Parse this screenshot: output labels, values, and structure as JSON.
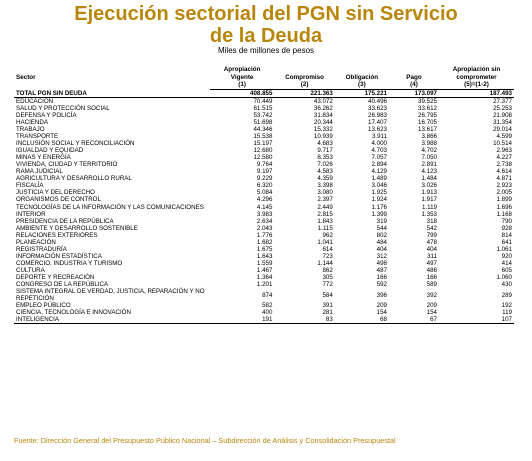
{
  "title_line1": "Ejecución sectorial del PGN sin Servicio",
  "title_line2": "de la Deuda",
  "subtitle": "Miles de millones de pesos",
  "headers": {
    "sector": "Sector",
    "apropiacion": "Apropiación Vigente",
    "compromiso": "Compromiso",
    "obligacion": "Obligación",
    "pago": "Pago",
    "sin_comprometer": "Apropiación sin comprometer",
    "n1": "(1)",
    "n2": "(2)",
    "n3": "(3)",
    "n4": "(4)",
    "n5": "(5)=(1-2)"
  },
  "total": {
    "sector": "TOTAL PGN SIN DEUDA",
    "a": "408.855",
    "c": "221.363",
    "o": "175.221",
    "p": "173.097",
    "s": "187.493"
  },
  "rows": [
    {
      "sector": "EDUCACIÓN",
      "a": "70.449",
      "c": "43.072",
      "o": "40.496",
      "p": "39.525",
      "s": "27.377"
    },
    {
      "sector": "SALUD Y PROTECCIÓN SOCIAL",
      "a": "61.515",
      "c": "36.262",
      "o": "33.623",
      "p": "33.612",
      "s": "25.253"
    },
    {
      "sector": "DEFENSA Y POLICÍA",
      "a": "53.742",
      "c": "31.834",
      "o": "26.983",
      "p": "26.795",
      "s": "21.908"
    },
    {
      "sector": "HACIENDA",
      "a": "51.698",
      "c": "20.344",
      "o": "17.407",
      "p": "16.705",
      "s": "31.354"
    },
    {
      "sector": "TRABAJO",
      "a": "44.346",
      "c": "15.332",
      "o": "13.623",
      "p": "13.617",
      "s": "29.014"
    },
    {
      "sector": "TRANSPORTE",
      "a": "15.538",
      "c": "10.939",
      "o": "3.911",
      "p": "3.866",
      "s": "4.599"
    },
    {
      "sector": "INCLUSIÓN SOCIAL Y RECONCILIACIÓN",
      "a": "15.197",
      "c": "4.683",
      "o": "4.000",
      "p": "3.988",
      "s": "10.514"
    },
    {
      "sector": "IGUALDAD Y EQUIDAD",
      "a": "12.680",
      "c": "9.717",
      "o": "4.703",
      "p": "4.702",
      "s": "2.963"
    },
    {
      "sector": "MINAS Y ENERGÍA",
      "a": "12.580",
      "c": "8.353",
      "o": "7.057",
      "p": "7.050",
      "s": "4.227"
    },
    {
      "sector": "VIVIENDA, CIUDAD Y TERRITORIO",
      "a": "9.764",
      "c": "7.026",
      "o": "2.894",
      "p": "2.891",
      "s": "2.738"
    },
    {
      "sector": "RAMA JUDICIAL",
      "a": "9.197",
      "c": "4.583",
      "o": "4.129",
      "p": "4.123",
      "s": "4.614"
    },
    {
      "sector": "AGRICULTURA Y DESARROLLO RURAL",
      "a": "9.229",
      "c": "4.359",
      "o": "1.489",
      "p": "1.484",
      "s": "4.871"
    },
    {
      "sector": "FISCALÍA",
      "a": "6.320",
      "c": "3.398",
      "o": "3.046",
      "p": "3.026",
      "s": "2.923"
    },
    {
      "sector": "JUSTICIA Y DEL DERECHO",
      "a": "5.084",
      "c": "3.080",
      "o": "1.925",
      "p": "1.913",
      "s": "2.005"
    },
    {
      "sector": "ORGANISMOS DE CONTROL",
      "a": "4.296",
      "c": "2.397",
      "o": "1.924",
      "p": "1.917",
      "s": "1.899"
    },
    {
      "sector": "TECNOLOGÍAS DE LA INFORMACIÓN Y LAS COMUNICACIONES",
      "a": "4.145",
      "c": "2.449",
      "o": "1.176",
      "p": "1.119",
      "s": "1.696",
      "wrap": true
    },
    {
      "sector": "INTERIOR",
      "a": "3.983",
      "c": "2.815",
      "o": "1.399",
      "p": "1.353",
      "s": "1.168"
    },
    {
      "sector": "PRESIDENCIA DE LA REPÚBLICA",
      "a": "2.634",
      "c": "1.843",
      "o": "319",
      "p": "318",
      "s": "790"
    },
    {
      "sector": "AMBIENTE Y DESARROLLO SOSTENIBLE",
      "a": "2.043",
      "c": "1.115",
      "o": "544",
      "p": "542",
      "s": "928"
    },
    {
      "sector": "RELACIONES EXTERIORES",
      "a": "1.776",
      "c": "962",
      "o": "802",
      "p": "799",
      "s": "814"
    },
    {
      "sector": "PLANEACIÓN",
      "a": "1.682",
      "c": "1.041",
      "o": "484",
      "p": "478",
      "s": "641"
    },
    {
      "sector": "REGISTRADURÍA",
      "a": "1.675",
      "c": "614",
      "o": "404",
      "p": "404",
      "s": "1.061"
    },
    {
      "sector": "INFORMACIÓN ESTADÍSTICA",
      "a": "1.643",
      "c": "723",
      "o": "312",
      "p": "311",
      "s": "920"
    },
    {
      "sector": "COMERCIO, INDUSTRIA Y TURISMO",
      "a": "1.559",
      "c": "1.144",
      "o": "498",
      "p": "497",
      "s": "414"
    },
    {
      "sector": "CULTURA",
      "a": "1.467",
      "c": "862",
      "o": "487",
      "p": "486",
      "s": "605"
    },
    {
      "sector": "DEPORTE Y RECREACIÓN",
      "a": "1.364",
      "c": "305",
      "o": "166",
      "p": "166",
      "s": "1.060"
    },
    {
      "sector": "CONGRESO DE LA REPÚBLICA",
      "a": "1.201",
      "c": "772",
      "o": "592",
      "p": "589",
      "s": "430"
    },
    {
      "sector": "SISTEMA INTEGRAL DE VERDAD, JUSTICIA, REPARACIÓN Y NO REPETICIÓN",
      "a": "874",
      "c": "584",
      "o": "396",
      "p": "392",
      "s": "289",
      "wrap": true
    },
    {
      "sector": "EMPLEO PÚBLICO",
      "a": "582",
      "c": "391",
      "o": "209",
      "p": "209",
      "s": "192"
    },
    {
      "sector": "CIENCIA, TECNOLOGÍA E INNOVACIÓN",
      "a": "400",
      "c": "281",
      "o": "154",
      "p": "154",
      "s": "119"
    },
    {
      "sector": "INTELIGENCIA",
      "a": "191",
      "c": "83",
      "o": "68",
      "p": "67",
      "s": "107"
    }
  ],
  "source": "Fuente: Dirección General del Presupuesto Público Nacional – Subdirección de Análisis y Consolidación Presupuestal",
  "colors": {
    "title": "#b8860b",
    "source": "#b8860b"
  }
}
